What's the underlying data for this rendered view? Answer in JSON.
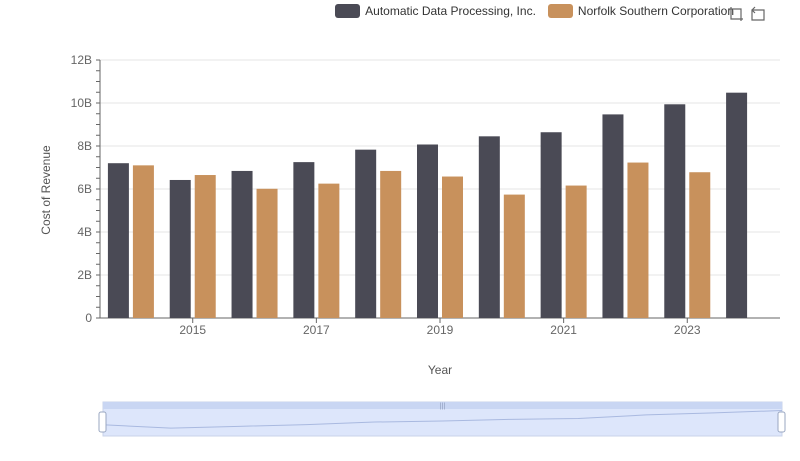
{
  "colors": {
    "adp": "#4a4a55",
    "nsc": "#c8915c",
    "grid": "#e4e4e4",
    "axis": "#555555"
  },
  "toolbox": {
    "zoom_icon": "zoom-select-icon",
    "reset_icon": "zoom-reset-icon"
  },
  "chart_data": {
    "type": "bar",
    "title": "",
    "xlabel": "Year",
    "ylabel": "Cost of Revenue",
    "x_tick_labels": [
      "2015",
      "2017",
      "2019",
      "2021",
      "2023"
    ],
    "y_tick_labels": [
      "0",
      "2B",
      "4B",
      "6B",
      "8B",
      "10B",
      "12B"
    ],
    "ylim": [
      0,
      12000000000
    ],
    "grid": true,
    "legend_position": "top-right",
    "x": [
      2014,
      2015,
      2016,
      2017,
      2018,
      2019,
      2020,
      2021,
      2022,
      2023,
      2024
    ],
    "series": [
      {
        "name": "Automatic Data Processing, Inc.",
        "color": "#4a4a55",
        "values": [
          7200000000,
          6420000000,
          6840000000,
          7250000000,
          7830000000,
          8070000000,
          8450000000,
          8640000000,
          9470000000,
          9940000000,
          10480000000
        ]
      },
      {
        "name": "Norfolk Southern Corporation",
        "color": "#c8915c",
        "values": [
          7100000000,
          6650000000,
          6010000000,
          6250000000,
          6840000000,
          6580000000,
          5740000000,
          6160000000,
          7230000000,
          6780000000,
          null
        ]
      }
    ]
  }
}
